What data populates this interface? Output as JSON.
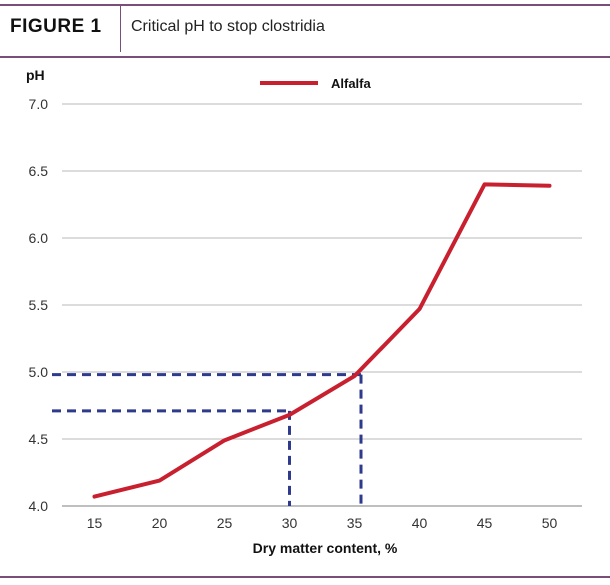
{
  "header": {
    "figure_label": "FIGURE 1",
    "title": "Critical pH to stop clostridia"
  },
  "colors": {
    "rule": "#7a4d7a",
    "line": "#c8202f",
    "guide": "#2e3a8c",
    "grid": "#b8b8b8"
  },
  "chart_data": {
    "type": "line",
    "title": "Critical pH to stop clostridia",
    "xlabel": "Dry matter content, %",
    "ylabel": "pH",
    "x": [
      15,
      20,
      25,
      30,
      35,
      40,
      45,
      50
    ],
    "xlim": [
      12.5,
      52.5
    ],
    "ylim": [
      4.0,
      7.0
    ],
    "yticks": [
      "4.0",
      "4.5",
      "5.0",
      "5.5",
      "6.0",
      "6.5",
      "7.0"
    ],
    "xticks": [
      "15",
      "20",
      "25",
      "30",
      "35",
      "40",
      "45",
      "50"
    ],
    "grid": "horizontal",
    "legend": "top-center",
    "series": [
      {
        "name": "Alfalfa",
        "x": [
          15,
          20,
          25,
          30,
          35,
          40,
          45,
          50
        ],
        "y": [
          4.07,
          4.19,
          4.49,
          4.68,
          4.97,
          5.47,
          6.4,
          6.39
        ]
      }
    ],
    "guides": [
      {
        "x": 30,
        "y": 4.71
      },
      {
        "x": 35.5,
        "y": 4.98
      }
    ]
  }
}
